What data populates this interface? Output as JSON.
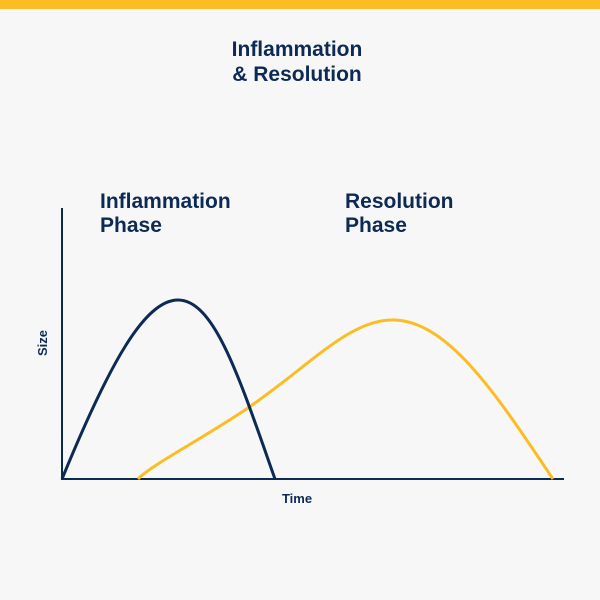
{
  "title": [
    "Inflammation",
    "& Resolution"
  ],
  "phases": [
    {
      "label": [
        "Inflammation",
        "Phase"
      ]
    },
    {
      "label": [
        "Resolution",
        "Phase"
      ]
    }
  ],
  "axes": {
    "y_label": "Size",
    "x_label": "Time"
  }
}
